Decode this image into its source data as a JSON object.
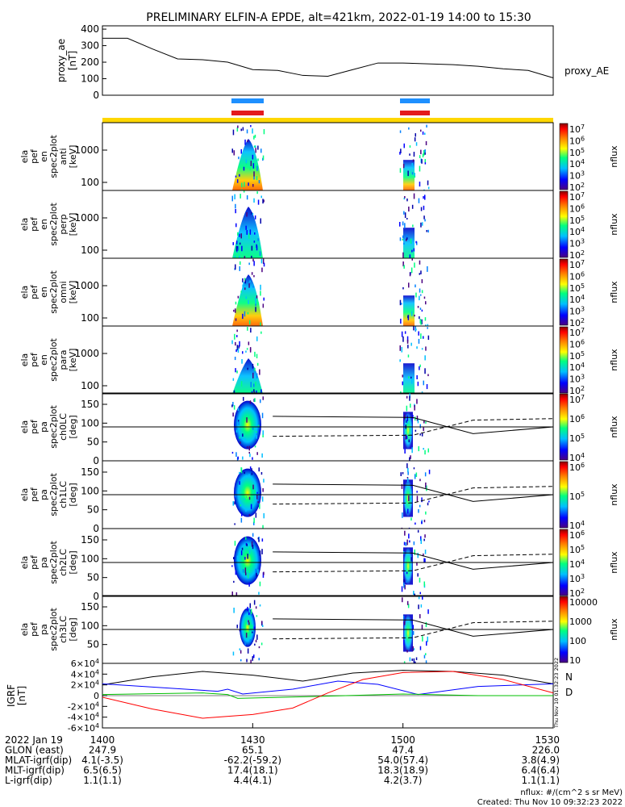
{
  "title": "PRELIMINARY ELFIN-A EPDE, alt=421km, 2022-01-19 14:00 to 15:30",
  "colors": {
    "blue_bar": "#1e90ff",
    "red_bar": "#e41a1c",
    "yellow_bar": "#ffd700",
    "n_trace": "#0000ff",
    "d_trace": "#ff0000",
    "green_trace": "#00c000"
  },
  "chart_data": [
    {
      "type": "line",
      "panel": "proxy_ae",
      "ylabel": [
        "proxy_ae",
        "[nT]"
      ],
      "yticks": [
        0,
        100,
        200,
        300,
        400
      ],
      "ylim": [
        0,
        420
      ],
      "series": [
        {
          "name": "proxy_AE",
          "x": [
            0,
            5,
            10,
            15,
            20,
            25,
            30,
            35,
            40,
            45,
            50,
            55,
            60,
            65,
            70,
            75,
            80,
            85,
            90
          ],
          "values": [
            345,
            345,
            280,
            220,
            215,
            200,
            155,
            150,
            120,
            115,
            155,
            195,
            195,
            190,
            185,
            175,
            160,
            150,
            105
          ]
        }
      ]
    },
    {
      "type": "heatmap",
      "panel": "energy spectrogram 1",
      "ylabel": [
        "ela",
        "pef",
        "en",
        "spec2plot",
        "anti",
        "[keV]"
      ],
      "yticks": [
        100,
        1000
      ],
      "yscale": "log",
      "zlabel": "nflux",
      "zticks": [
        "10^2",
        "10^3",
        "10^4",
        "10^5",
        "10^6",
        "10^7"
      ]
    },
    {
      "type": "heatmap",
      "panel": "energy spectrogram 2",
      "ylabel": [
        "ela",
        "pef",
        "en",
        "spec2plot",
        "perp",
        "[keV]"
      ],
      "yticks": [
        100,
        1000
      ],
      "yscale": "log",
      "zlabel": "nflux",
      "zticks": [
        "10^2",
        "10^3",
        "10^4",
        "10^5",
        "10^6",
        "10^7"
      ]
    },
    {
      "type": "heatmap",
      "panel": "energy spectrogram 3",
      "ylabel": [
        "ela",
        "pef",
        "en",
        "spec2plot",
        "omni",
        "[keV]"
      ],
      "yticks": [
        100,
        1000
      ],
      "yscale": "log",
      "zlabel": "nflux",
      "zticks": [
        "10^2",
        "10^3",
        "10^4",
        "10^5",
        "10^6",
        "10^7"
      ]
    },
    {
      "type": "heatmap",
      "panel": "energy spectrogram 4",
      "ylabel": [
        "ela",
        "pef",
        "en",
        "spec2plot",
        "para",
        "[keV]"
      ],
      "yticks": [
        100,
        1000
      ],
      "yscale": "log",
      "zlabel": "nflux",
      "zticks": [
        "10^2",
        "10^3",
        "10^4",
        "10^5",
        "10^6",
        "10^7"
      ]
    },
    {
      "type": "heatmap",
      "panel": "pitch angle ch0LC",
      "ylabel": [
        "ela",
        "pef",
        "pa",
        "spec2plot",
        "ch0LC",
        "[deg]"
      ],
      "yticks": [
        0,
        50,
        100,
        150
      ],
      "ylim": [
        0,
        180
      ],
      "zlabel": "nflux",
      "zticks": [
        "10^4",
        "10^5",
        "10^6",
        "10^7"
      ]
    },
    {
      "type": "heatmap",
      "panel": "pitch angle ch1LC",
      "ylabel": [
        "ela",
        "pef",
        "pa",
        "spec2plot",
        "ch1LC",
        "[deg]"
      ],
      "yticks": [
        0,
        50,
        100,
        150
      ],
      "ylim": [
        0,
        180
      ],
      "zlabel": "nflux",
      "zticks": [
        "10^4",
        "10^5",
        "10^6"
      ]
    },
    {
      "type": "heatmap",
      "panel": "pitch angle ch2LC",
      "ylabel": [
        "ela",
        "pef",
        "pa",
        "spec2plot",
        "ch2LC",
        "[deg]"
      ],
      "yticks": [
        0,
        50,
        100,
        150
      ],
      "ylim": [
        0,
        180
      ],
      "zlabel": "nflux",
      "zticks": [
        "10^2",
        "10^3",
        "10^4",
        "10^5",
        "10^6"
      ]
    },
    {
      "type": "heatmap",
      "panel": "pitch angle ch3LC",
      "ylabel": [
        "ela",
        "pef",
        "pa",
        "spec2plot",
        "ch3LC",
        "[deg]"
      ],
      "yticks": [
        50,
        100,
        150
      ],
      "ylim": [
        0,
        180
      ],
      "zlabel": "nflux",
      "zticks": [
        "10",
        "100",
        "1000",
        "10000"
      ]
    },
    {
      "type": "line",
      "panel": "IGRF",
      "ylabel": [
        "IGRF",
        "[nT]"
      ],
      "yticks": [
        "-6×10^4",
        "-4×10^4",
        "-2×10^4",
        "0",
        "2×10^4",
        "4×10^4",
        "6×10^4"
      ],
      "ylim": [
        -60000,
        60000
      ],
      "legend": [
        "N",
        "D"
      ]
    }
  ],
  "annotations": {
    "side_label": "Thu Nov 10 01:32:23 2022",
    "nflux_units": "nflux: #/(cm^2 s sr MeV)",
    "created": "Created: Thu Nov 10 09:32:23 2022"
  },
  "x_axis": {
    "rows": [
      {
        "label": "2022 Jan 19",
        "values": [
          "1400",
          "1430",
          "1500",
          "1530"
        ]
      },
      {
        "label": "GLON (east)",
        "values": [
          "247.9",
          "65.1",
          "47.4",
          "226.0"
        ]
      },
      {
        "label": "MLAT-igrf(dip)",
        "values": [
          "4.1(-3.5)",
          "-62.2(-59.2)",
          "54.0(57.4)",
          "3.8(4.9)"
        ]
      },
      {
        "label": "MLT-igrf(dip)",
        "values": [
          "6.5(6.5)",
          "17.4(18.1)",
          "18.3(18.9)",
          "6.4(6.4)"
        ]
      },
      {
        "label": "L-igrf(dip)",
        "values": [
          "1.1(1.1)",
          "4.4(4.1)",
          "4.2(3.7)",
          "1.1(1.1)"
        ]
      }
    ]
  }
}
